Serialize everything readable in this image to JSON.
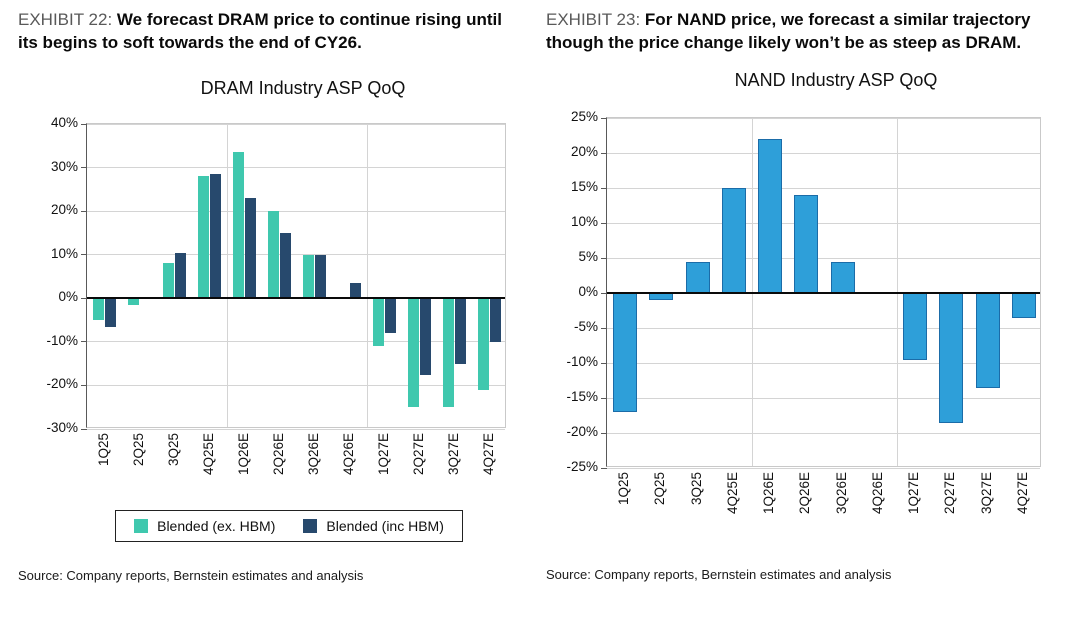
{
  "left_panel": {
    "exhibit_label": "EXHIBIT 22:",
    "headline": "We forecast DRAM price to continue rising until its begins to soft towards the end of CY26.",
    "source": "Source: Company reports, Bernstein estimates and analysis"
  },
  "right_panel": {
    "exhibit_label": "EXHIBIT 23:",
    "headline": "For NAND price, we forecast a similar trajectory though the price change likely won’t be as steep as DRAM.",
    "source": "Source: Company reports, Bernstein estimates and analysis"
  },
  "chart_data": [
    {
      "type": "bar",
      "title": "DRAM Industry ASP QoQ",
      "categories": [
        "1Q25",
        "2Q25",
        "3Q25",
        "4Q25E",
        "1Q26E",
        "2Q26E",
        "3Q26E",
        "4Q26E",
        "1Q27E",
        "2Q27E",
        "3Q27E",
        "4Q27E"
      ],
      "series": [
        {
          "name": "Blended (ex. HBM)",
          "color": "#3FC8AE",
          "values": [
            -5,
            -1.5,
            8,
            28,
            33.5,
            20,
            10,
            0,
            -11,
            -25,
            -25,
            -21
          ]
        },
        {
          "name": "Blended (inc HBM)",
          "color": "#27496D",
          "values": [
            -6.5,
            0,
            10.5,
            28.5,
            23,
            15,
            10,
            3.5,
            -8,
            -17.5,
            -15,
            -10
          ]
        }
      ],
      "ylim": [
        -30,
        40
      ],
      "ytick_step": 10,
      "ytick_suffix": "%",
      "grid": true,
      "legend_position": "bottom",
      "vline_after_indices": [
        3,
        7
      ]
    },
    {
      "type": "bar",
      "title": "NAND Industry ASP QoQ",
      "categories": [
        "1Q25",
        "2Q25",
        "3Q25",
        "4Q25E",
        "1Q26E",
        "2Q26E",
        "3Q26E",
        "4Q26E",
        "1Q27E",
        "2Q27E",
        "3Q27E",
        "4Q27E"
      ],
      "values": [
        -17,
        -1,
        4.5,
        15,
        22,
        14,
        4.5,
        0.2,
        -9.5,
        -18.5,
        -13.5,
        -3.5
      ],
      "bar_color": "#2E9FD9",
      "bar_border": "#1B6CA8",
      "ylim": [
        -25,
        25
      ],
      "ytick_step": 5,
      "ytick_suffix": "%",
      "grid": true,
      "legend_position": "none",
      "vline_after_indices": [
        3,
        7
      ]
    }
  ]
}
